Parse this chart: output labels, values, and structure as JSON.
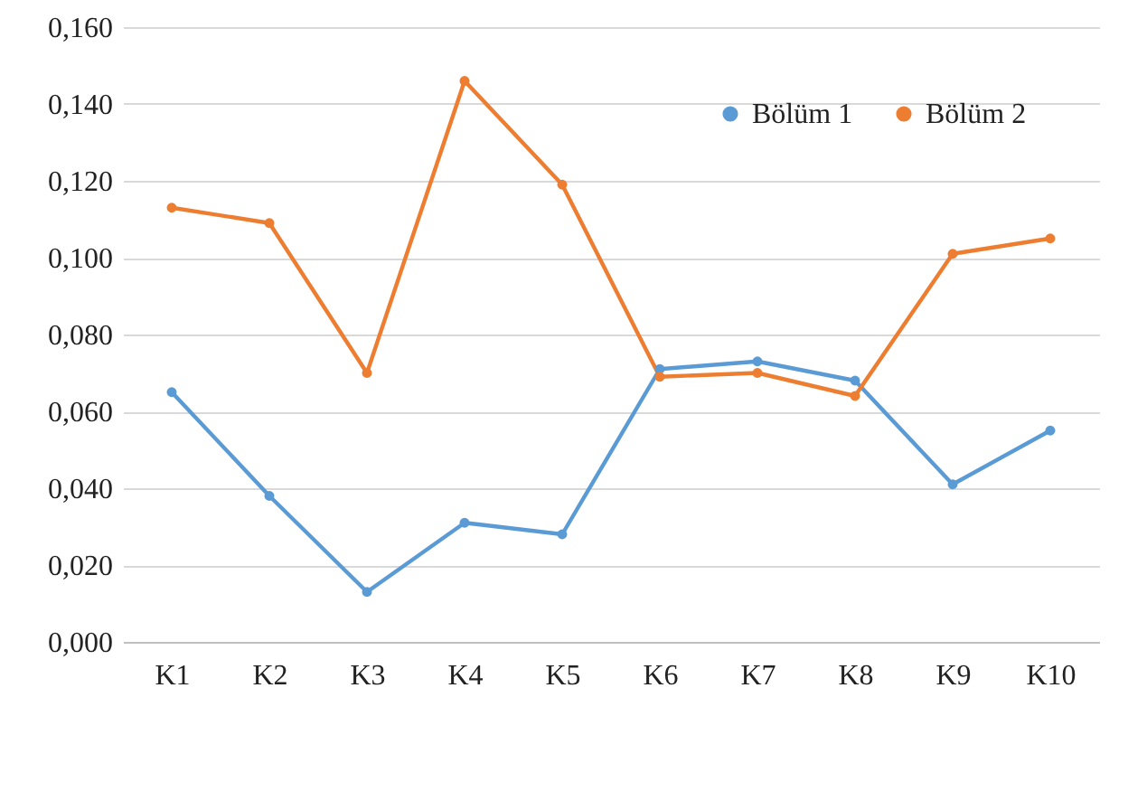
{
  "chart_data": {
    "type": "line",
    "categories": [
      "K1",
      "K2",
      "K3",
      "K4",
      "K5",
      "K6",
      "K7",
      "K8",
      "K9",
      "K10"
    ],
    "series": [
      {
        "name": "Bölüm 1",
        "color": "#5b9bd5",
        "values": [
          0.065,
          0.038,
          0.013,
          0.031,
          0.028,
          0.071,
          0.073,
          0.068,
          0.041,
          0.055
        ]
      },
      {
        "name": "Bölüm 2",
        "color": "#ed7d31",
        "values": [
          0.113,
          0.109,
          0.07,
          0.146,
          0.119,
          0.069,
          0.07,
          0.064,
          0.101,
          0.105
        ]
      }
    ],
    "ylim": [
      0,
      0.16
    ],
    "yticks": [
      {
        "value": 0,
        "label": "0,000"
      },
      {
        "value": 0.02,
        "label": "0,020"
      },
      {
        "value": 0.04,
        "label": "0,040"
      },
      {
        "value": 0.06,
        "label": "0,060"
      },
      {
        "value": 0.08,
        "label": "0,080"
      },
      {
        "value": 0.1,
        "label": "0,100"
      },
      {
        "value": 0.12,
        "label": "0,120"
      },
      {
        "value": 0.14,
        "label": "0,140"
      },
      {
        "value": 0.16,
        "label": "0,160"
      }
    ],
    "grid": "y",
    "legend": "top right",
    "marker": "circle",
    "line_style": "solid"
  }
}
